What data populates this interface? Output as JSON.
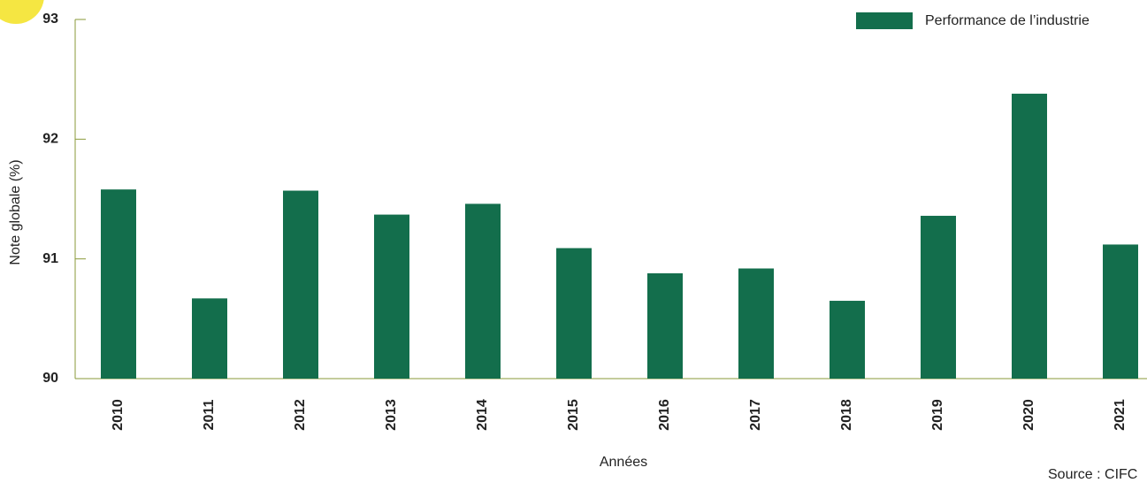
{
  "chart_data": {
    "type": "bar",
    "categories": [
      "2010",
      "2011",
      "2012",
      "2013",
      "2014",
      "2015",
      "2016",
      "2017",
      "2018",
      "2019",
      "2020",
      "2021"
    ],
    "series": [
      {
        "name": "Performance de l’industrie",
        "color": "#136e4c",
        "values": [
          91.58,
          90.67,
          91.57,
          91.37,
          91.46,
          91.09,
          90.88,
          90.92,
          90.65,
          91.36,
          92.38,
          91.12
        ]
      }
    ],
    "ylim": [
      90,
      93
    ],
    "yticks": [
      90,
      91,
      92,
      93
    ],
    "y_label": "Note globale (%)",
    "x_label": "Années",
    "source": "Source : CIFC",
    "legend": "top-right"
  }
}
